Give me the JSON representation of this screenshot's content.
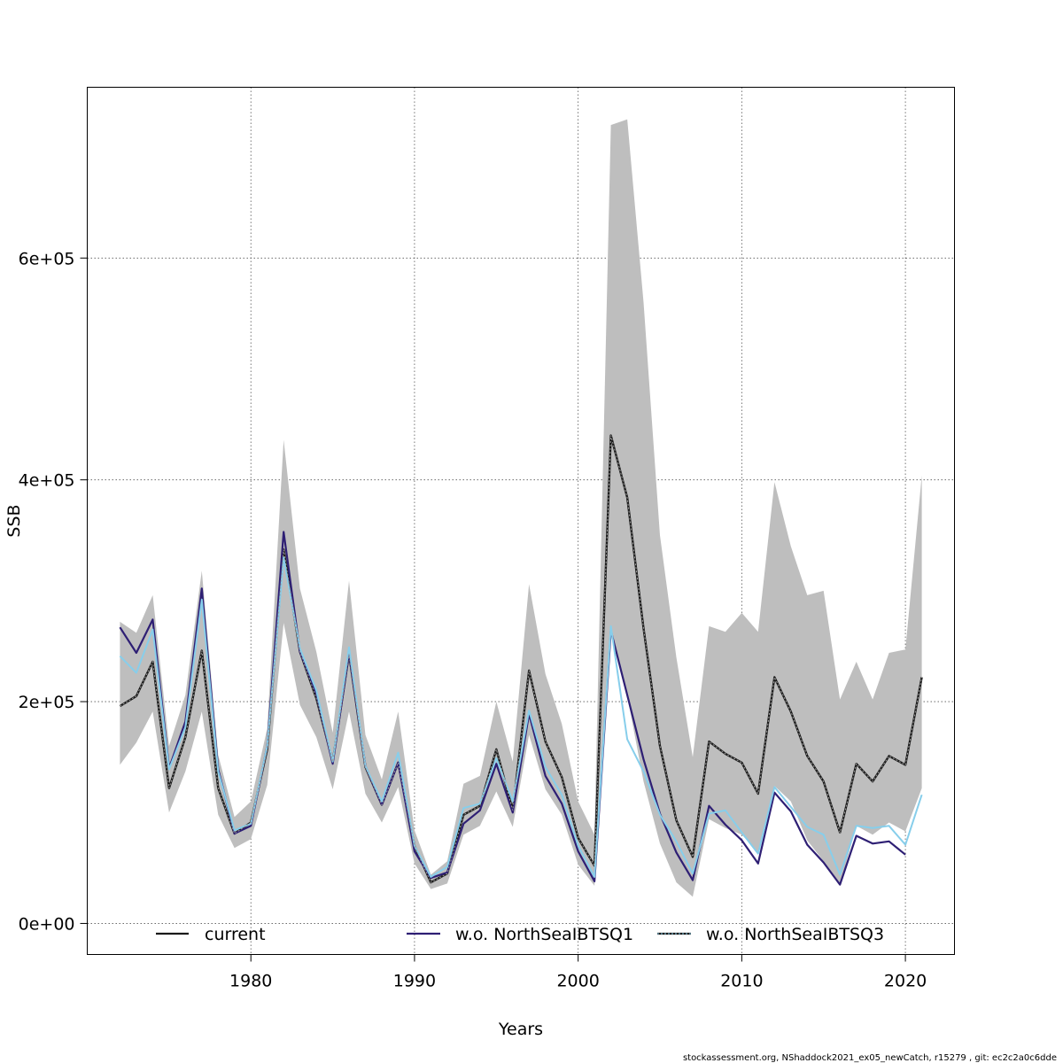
{
  "chart_data": {
    "type": "line",
    "title": "",
    "xlabel": "Years",
    "ylabel": "SSB",
    "xlim": [
      1970,
      2023
    ],
    "ylim": [
      -28000,
      754000
    ],
    "x_ticks": [
      1980,
      1990,
      2000,
      2010,
      2020
    ],
    "x_tick_labels": [
      "1980",
      "1990",
      "2000",
      "2010",
      "2020"
    ],
    "y_ticks": [
      0,
      200000,
      400000,
      600000
    ],
    "y_tick_labels": [
      "0e+00",
      "2e+05",
      "4e+05",
      "6e+05"
    ],
    "grid": true,
    "legend_position": "bottom",
    "x": [
      1972,
      1973,
      1974,
      1975,
      1976,
      1977,
      1978,
      1979,
      1980,
      1981,
      1982,
      1983,
      1984,
      1985,
      1986,
      1987,
      1988,
      1989,
      1990,
      1991,
      1992,
      1993,
      1994,
      1995,
      1996,
      1997,
      1998,
      1999,
      2000,
      2001,
      2002,
      2003,
      2004,
      2005,
      2006,
      2007,
      2008,
      2009,
      2010,
      2011,
      2012,
      2013,
      2014,
      2015,
      2016,
      2017,
      2018,
      2019,
      2020,
      2021
    ],
    "confidence_band": {
      "name": "current 95% CI",
      "color": "#bebebe",
      "upper": [
        272000,
        262000,
        296000,
        160000,
        206000,
        318000,
        152000,
        96000,
        110000,
        176000,
        436000,
        302000,
        245000,
        172000,
        309000,
        170000,
        130000,
        191000,
        84000,
        44000,
        56000,
        126000,
        133000,
        200000,
        146000,
        306000,
        225000,
        180000,
        110000,
        80000,
        720000,
        725000,
        560000,
        350000,
        240000,
        150000,
        268000,
        263000,
        280000,
        263000,
        398000,
        340000,
        296000,
        300000,
        202000,
        236000,
        202000,
        244000,
        247000,
        404000
      ],
      "lower": [
        143000,
        163000,
        191000,
        100000,
        137000,
        191000,
        98000,
        68000,
        76000,
        125000,
        271000,
        197000,
        168000,
        121000,
        191000,
        117000,
        91000,
        123000,
        54000,
        31000,
        36000,
        80000,
        88000,
        119000,
        87000,
        170000,
        121000,
        98000,
        53000,
        34000,
        266000,
        205000,
        128000,
        72000,
        37000,
        24000,
        94000,
        86000,
        80000,
        64000,
        124000,
        110000,
        75000,
        56000,
        34000,
        88000,
        80000,
        91000,
        83000,
        122000
      ]
    },
    "series": [
      {
        "name": "current",
        "color": "#1a1a1a",
        "values": [
          196000,
          205000,
          236000,
          122000,
          168000,
          246000,
          122000,
          81000,
          91000,
          157000,
          337000,
          245000,
          203000,
          146000,
          243000,
          141000,
          107000,
          145000,
          70000,
          37000,
          45000,
          98000,
          106000,
          157000,
          102000,
          228000,
          164000,
          132000,
          77000,
          52000,
          440000,
          384000,
          266000,
          160000,
          93000,
          60000,
          164000,
          153000,
          145000,
          117000,
          222000,
          191000,
          151000,
          128000,
          82000,
          144000,
          128000,
          151000,
          143000,
          222000
        ]
      },
      {
        "name": "w.o. NorthSeaIBTSQ1",
        "color": "#2e1f74",
        "values": [
          267000,
          244000,
          274000,
          140000,
          182000,
          302000,
          139000,
          81000,
          88000,
          160000,
          353000,
          245000,
          207000,
          144000,
          244000,
          142000,
          107000,
          145000,
          65000,
          41000,
          46000,
          90000,
          102000,
          144000,
          100000,
          189000,
          133000,
          108000,
          65000,
          38000,
          264000,
          206000,
          148000,
          99000,
          64000,
          39000,
          106000,
          89000,
          75000,
          54000,
          118000,
          101000,
          71000,
          55000,
          35000,
          79000,
          72000,
          74000,
          62000,
          null
        ]
      },
      {
        "name": "w.o. NorthSeaIBTSQ3",
        "color": "#87ceeb",
        "values": [
          241000,
          226000,
          265000,
          139000,
          177000,
          292000,
          137000,
          84000,
          90000,
          160000,
          330000,
          248000,
          210000,
          146000,
          249000,
          142000,
          110000,
          154000,
          70000,
          42000,
          51000,
          104000,
          108000,
          149000,
          110000,
          192000,
          141000,
          116000,
          70000,
          42000,
          268000,
          166000,
          137000,
          98000,
          74000,
          45000,
          99000,
          102000,
          82000,
          63000,
          123000,
          105000,
          87000,
          80000,
          44000,
          88000,
          86000,
          88000,
          71000,
          116000
        ]
      }
    ],
    "footer": "stockassessment.org, NShaddock2021_ex05_newCatch, r15279 , git: ec2c2a0c6dde"
  }
}
